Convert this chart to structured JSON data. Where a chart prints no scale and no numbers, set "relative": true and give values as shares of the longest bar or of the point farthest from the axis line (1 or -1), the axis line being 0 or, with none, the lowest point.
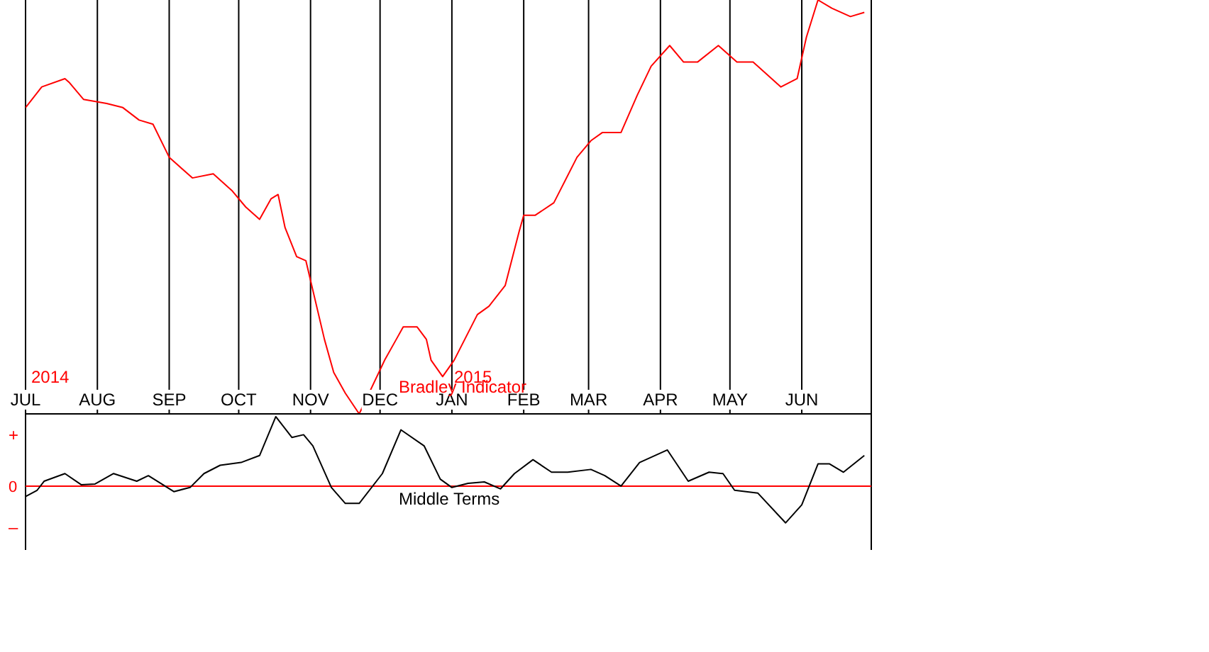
{
  "chart_data": [
    {
      "type": "line",
      "relative": true,
      "grid": "x",
      "tick_labels": "x",
      "xlim": [
        "2014-07-01",
        "2015-07-01"
      ],
      "xticks": [
        {
          "value": "2014-07-01",
          "label": "JUL"
        },
        {
          "value": "2014-08-01",
          "label": "AUG"
        },
        {
          "value": "2014-09-01",
          "label": "SEP"
        },
        {
          "value": "2014-10-01",
          "label": "OCT"
        },
        {
          "value": "2014-11-01",
          "label": "NOV"
        },
        {
          "value": "2014-12-01",
          "label": "DEC"
        },
        {
          "value": "2015-01-01",
          "label": "JAN"
        },
        {
          "value": "2015-02-01",
          "label": "FEB"
        },
        {
          "value": "2015-03-01",
          "label": "MAR"
        },
        {
          "value": "2015-04-01",
          "label": "APR"
        },
        {
          "value": "2015-05-01",
          "label": "MAY"
        },
        {
          "value": "2015-06-01",
          "label": "JUN"
        }
      ],
      "annotations": [
        "2014",
        "2015",
        "Bradley Indicator"
      ],
      "x": [
        "2014-07-01",
        "2014-07-08",
        "2014-07-18",
        "2014-07-20",
        "2014-07-26",
        "2014-08-05",
        "2014-08-12",
        "2014-08-19",
        "2014-08-25",
        "2014-09-01",
        "2014-09-11",
        "2014-09-20",
        "2014-09-28",
        "2014-10-04",
        "2014-10-10",
        "2014-10-15",
        "2014-10-18",
        "2014-10-21",
        "2014-10-26",
        "2014-10-30",
        "2014-11-07",
        "2014-11-11",
        "2014-11-16",
        "2014-11-22",
        "2014-12-03",
        "2014-12-08",
        "2014-12-11",
        "2014-12-17",
        "2014-12-21",
        "2014-12-23",
        "2014-12-28",
        "2015-01-02",
        "2015-01-12",
        "2015-01-17",
        "2015-01-24",
        "2015-01-30",
        "2015-02-01",
        "2015-02-06",
        "2015-02-14",
        "2015-02-24",
        "2015-03-02",
        "2015-03-07",
        "2015-03-15",
        "2015-03-22",
        "2015-03-28",
        "2015-04-05",
        "2015-04-11",
        "2015-04-17",
        "2015-04-26",
        "2015-05-04",
        "2015-05-11",
        "2015-05-23",
        "2015-05-30",
        "2015-06-03",
        "2015-06-08",
        "2015-06-14",
        "2015-06-22",
        "2015-06-28"
      ],
      "series": [
        {
          "color": "#ff0000",
          "values": [
            0.74,
            0.79,
            0.81,
            0.8,
            0.76,
            0.75,
            0.74,
            0.71,
            0.7,
            0.62,
            0.57,
            0.58,
            0.54,
            0.5,
            0.47,
            0.52,
            0.53,
            0.45,
            0.38,
            0.37,
            0.18,
            0.1,
            0.05,
            0,
            0.13,
            0.18,
            0.21,
            0.21,
            0.18,
            0.13,
            0.09,
            0.13,
            0.24,
            0.26,
            0.31,
            0.44,
            0.48,
            0.48,
            0.51,
            0.62,
            0.66,
            0.68,
            0.68,
            0.77,
            0.84,
            0.89,
            0.85,
            0.85,
            0.89,
            0.85,
            0.85,
            0.79,
            0.81,
            0.91,
            1,
            0.98,
            0.96,
            0.97
          ]
        }
      ]
    },
    {
      "type": "line",
      "relative": true,
      "grid": "x",
      "tick_labels": false,
      "xlim": [
        "2014-07-01",
        "2015-07-01"
      ],
      "xticks": [
        {
          "value": "2014-07-01",
          "label": null
        },
        {
          "value": "2014-08-01",
          "label": null
        },
        {
          "value": "2014-09-01",
          "label": null
        },
        {
          "value": "2014-10-01",
          "label": null
        },
        {
          "value": "2014-11-01",
          "label": null
        },
        {
          "value": "2014-12-01",
          "label": null
        },
        {
          "value": "2015-01-01",
          "label": null
        },
        {
          "value": "2015-02-01",
          "label": null
        },
        {
          "value": "2015-03-01",
          "label": null
        },
        {
          "value": "2015-04-01",
          "label": null
        },
        {
          "value": "2015-05-01",
          "label": null
        },
        {
          "value": "2015-06-01",
          "label": null
        }
      ],
      "ref_lines": [
        {
          "axis": "y",
          "value": 0,
          "label": "0",
          "color": "#ff0000"
        }
      ],
      "annotations": [
        "Middle Terms",
        "+",
        "–"
      ],
      "x": [
        "2014-07-01",
        "2014-07-06",
        "2014-07-09",
        "2014-07-18",
        "2014-07-25",
        "2014-07-31",
        "2014-08-08",
        "2014-08-18",
        "2014-08-23",
        "2014-09-03",
        "2014-09-10",
        "2014-09-16",
        "2014-09-23",
        "2014-10-02",
        "2014-10-10",
        "2014-10-17",
        "2014-10-24",
        "2014-10-29",
        "2014-11-02",
        "2014-11-10",
        "2014-11-16",
        "2014-11-22",
        "2014-12-02",
        "2014-12-10",
        "2014-12-20",
        "2014-12-27",
        "2015-01-01",
        "2015-01-08",
        "2015-01-15",
        "2015-01-22",
        "2015-01-28",
        "2015-02-05",
        "2015-02-13",
        "2015-02-20",
        "2015-03-02",
        "2015-03-08",
        "2015-03-15",
        "2015-03-23",
        "2015-04-04",
        "2015-04-13",
        "2015-04-22",
        "2015-04-28",
        "2015-05-03",
        "2015-05-13",
        "2015-05-25",
        "2015-06-01",
        "2015-06-08",
        "2015-06-13",
        "2015-06-19",
        "2015-06-28"
      ],
      "series": [
        {
          "color": "#000000",
          "values": [
            -0.15,
            -0.06,
            0.07,
            0.18,
            0.02,
            0.03,
            0.18,
            0.07,
            0.15,
            -0.08,
            -0.02,
            0.18,
            0.3,
            0.34,
            0.44,
            1,
            0.7,
            0.74,
            0.58,
            -0.02,
            -0.25,
            -0.25,
            0.18,
            0.81,
            0.58,
            0.1,
            -0.02,
            0.04,
            0.06,
            -0.04,
            0.18,
            0.38,
            0.2,
            0.2,
            0.24,
            0.15,
            0,
            0.34,
            0.52,
            0.07,
            0.2,
            0.18,
            -0.06,
            -0.1,
            -0.53,
            -0.27,
            0.32,
            0.32,
            0.2,
            0.44
          ]
        }
      ]
    }
  ]
}
